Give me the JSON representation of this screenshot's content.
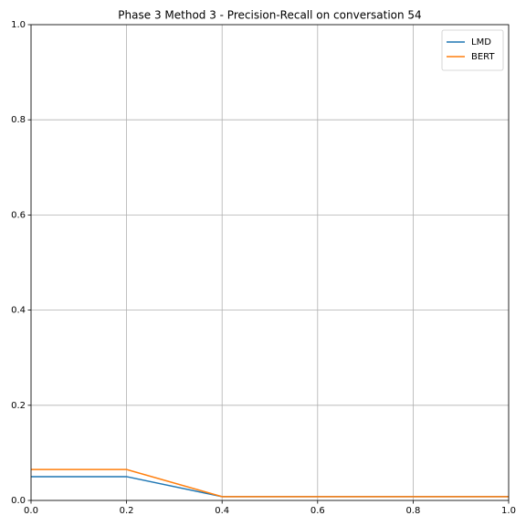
{
  "chart_data": {
    "type": "line",
    "title": "Phase 3 Method 3 - Precision-Recall on conversation 54",
    "x": [
      0,
      0.2,
      0.4,
      0.6,
      0.8,
      1.0
    ],
    "series": [
      {
        "name": "LMD",
        "color": "#1f77b4",
        "values": [
          0.05,
          0.05,
          0.008,
          0.008,
          0.008,
          0.008
        ]
      },
      {
        "name": "BERT",
        "color": "#ff7f0e",
        "values": [
          0.065,
          0.065,
          0.008,
          0.008,
          0.008,
          0.008
        ]
      }
    ],
    "xlim": [
      0,
      1
    ],
    "ylim": [
      0,
      1
    ],
    "xticks": [
      {
        "value": 0,
        "label": "0.0"
      },
      0.2,
      0.4,
      0.6,
      0.8,
      {
        "value": 1,
        "label": "1.0"
      }
    ],
    "yticks": [
      {
        "value": 0,
        "label": "0.0"
      },
      0.2,
      0.4,
      0.6,
      0.8,
      {
        "value": 1,
        "label": "1.0"
      }
    ],
    "grid": true,
    "legend": "upper right"
  }
}
